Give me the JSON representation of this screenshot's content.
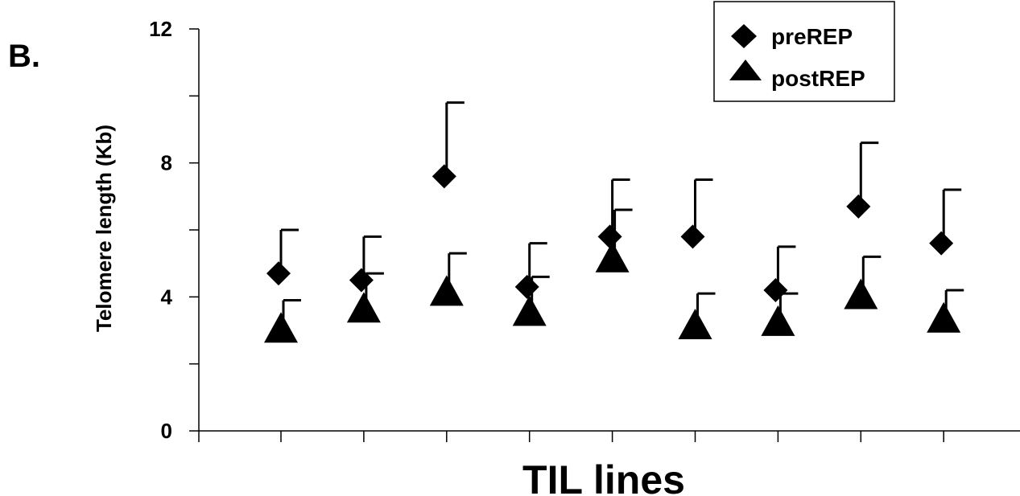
{
  "chart_data": {
    "type": "scatter",
    "panel_label": "B.",
    "xlabel": "TIL lines",
    "ylabel": "Telomere length (Kb)",
    "ylim": [
      0,
      12
    ],
    "y_ticks": [
      0,
      2,
      4,
      6,
      8,
      10,
      12
    ],
    "y_tick_labels": [
      {
        "value": 0,
        "label": "0"
      },
      {
        "value": 4,
        "label": "4"
      },
      {
        "value": 8,
        "label": "8"
      },
      {
        "value": 12,
        "label": "12"
      }
    ],
    "x": [
      1,
      2,
      3,
      4,
      5,
      6,
      7,
      8,
      9
    ],
    "grid": false,
    "legend_position": "top-right",
    "series": [
      {
        "name": "preREP",
        "marker": "diamond",
        "values": [
          4.7,
          4.5,
          7.6,
          4.3,
          5.8,
          5.8,
          4.2,
          6.7,
          5.6
        ],
        "error_upper": [
          6.0,
          5.8,
          9.8,
          5.6,
          7.5,
          7.5,
          5.5,
          8.6,
          7.2
        ]
      },
      {
        "name": "postREP",
        "marker": "triangle",
        "values": [
          3.0,
          3.6,
          4.1,
          3.5,
          5.1,
          3.1,
          3.2,
          4.0,
          3.3
        ],
        "error_upper": [
          3.9,
          4.7,
          5.3,
          4.6,
          6.6,
          4.1,
          4.1,
          5.2,
          4.2
        ]
      }
    ]
  }
}
